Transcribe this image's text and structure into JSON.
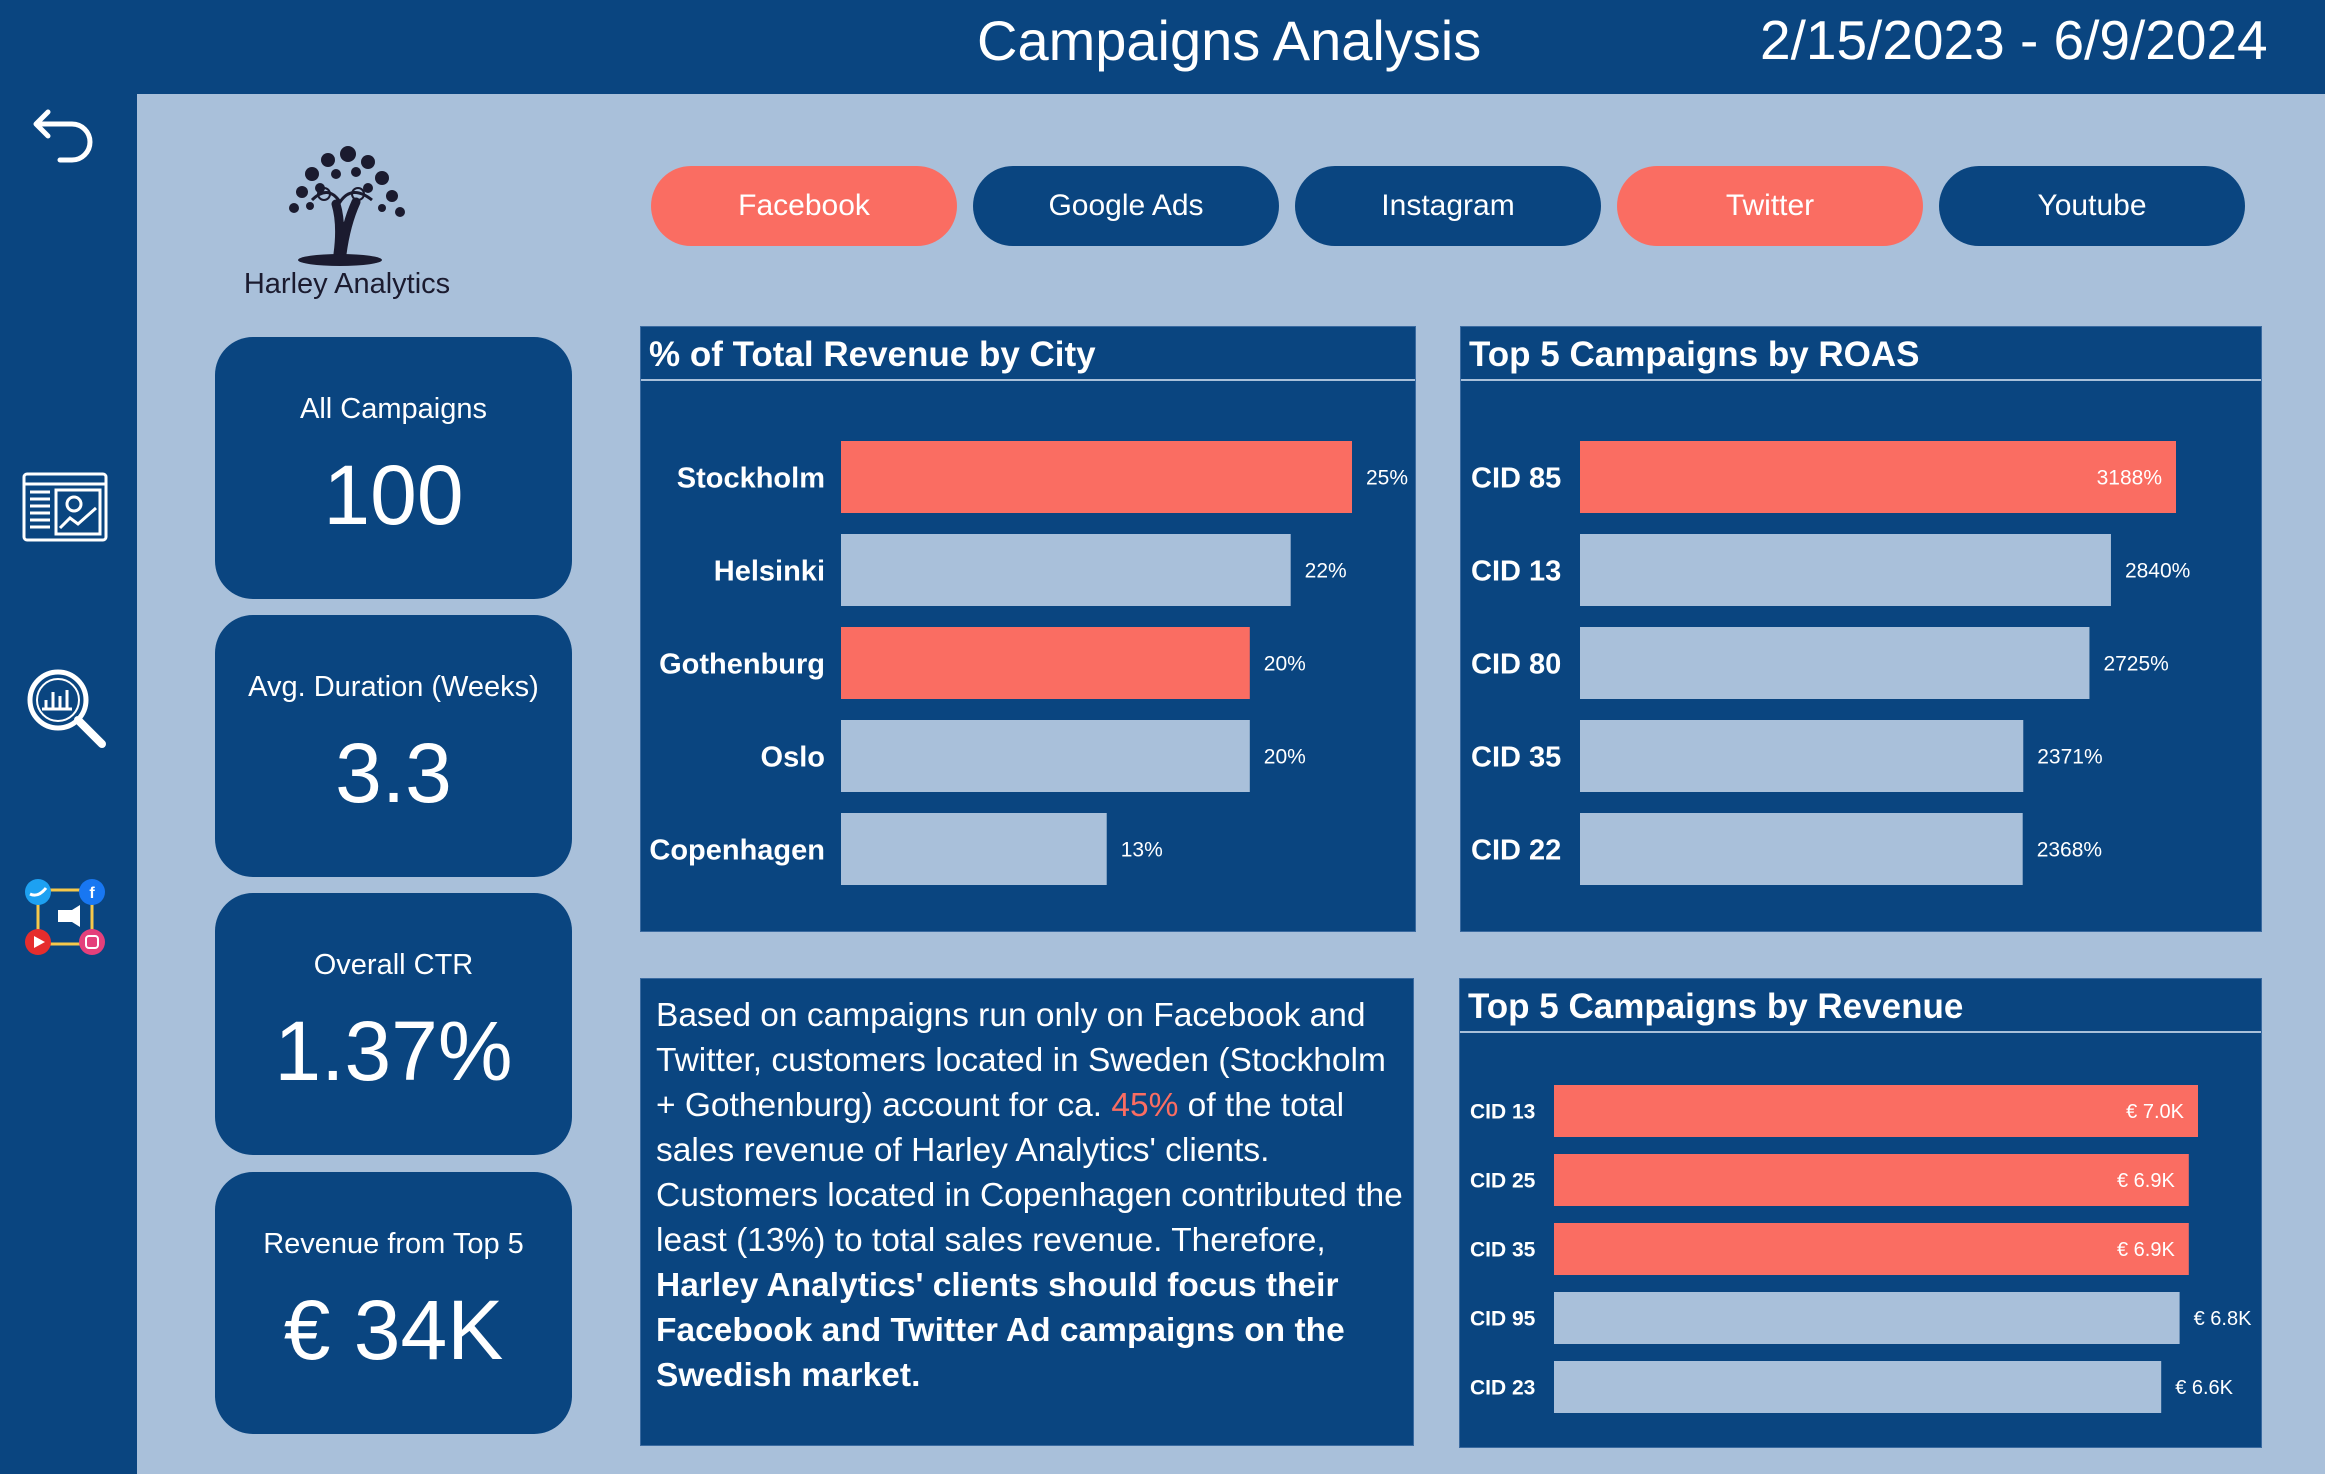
{
  "header": {
    "title": "Campaigns Analysis",
    "date_range": "2/15/2023 - 6/9/2024"
  },
  "sidebar": {
    "items": [
      {
        "icon": "back-arrow-icon"
      },
      {
        "icon": "dashboard-report-icon"
      },
      {
        "icon": "analytics-search-icon"
      },
      {
        "icon": "social-media-icon"
      }
    ]
  },
  "logo": {
    "text": "Harley Analytics"
  },
  "channels": [
    {
      "label": "Facebook",
      "selected": true
    },
    {
      "label": "Google Ads",
      "selected": false
    },
    {
      "label": "Instagram",
      "selected": false
    },
    {
      "label": "Twitter",
      "selected": true
    },
    {
      "label": "Youtube",
      "selected": false
    }
  ],
  "kpis": [
    {
      "label": "All Campaigns",
      "value": "100"
    },
    {
      "label": "Avg. Duration (Weeks)",
      "value": "3.3"
    },
    {
      "label": "Overall CTR",
      "value": "1.37%"
    },
    {
      "label": "Revenue from Top 5",
      "value": "€ 34K"
    }
  ],
  "colors": {
    "navy": "#0a4580",
    "background": "#a9c0da",
    "highlight": "#fa6d62",
    "bar_default": "#a9c0da"
  },
  "insight": {
    "p1": "Based on campaigns run only on Facebook and Twitter, customers located in Sweden (Stockholm + Gothenburg) account for ca. ",
    "highlight": "45%",
    "p2": " of the total sales revenue of Harley Analytics' clients. Customers located in Copenhagen contributed the least (13%) to total sales revenue. Therefore, ",
    "bold": "Harley Analytics' clients should focus their Facebook and Twitter Ad campaigns on the Swedish market."
  },
  "chart_data": [
    {
      "type": "bar",
      "orientation": "horizontal",
      "title": "% of Total Revenue by City",
      "categories": [
        "Stockholm",
        "Helsinki",
        "Gothenburg",
        "Oslo",
        "Copenhagen"
      ],
      "values": [
        25,
        22,
        20,
        20,
        13
      ],
      "labels": [
        "25%",
        "22%",
        "20%",
        "20%",
        "13%"
      ],
      "highlighted": [
        true,
        false,
        true,
        false,
        false
      ],
      "xlim": [
        0,
        25
      ]
    },
    {
      "type": "bar",
      "orientation": "horizontal",
      "title": "Top 5 Campaigns by ROAS",
      "categories": [
        "CID 85",
        "CID 13",
        "CID 80",
        "CID 35",
        "CID 22"
      ],
      "values": [
        3188,
        2840,
        2725,
        2371,
        2368
      ],
      "labels": [
        "3188%",
        "2840%",
        "2725%",
        "2371%",
        "2368%"
      ],
      "highlighted": [
        true,
        false,
        false,
        false,
        false
      ],
      "xlim": [
        0,
        3188
      ]
    },
    {
      "type": "bar",
      "orientation": "horizontal",
      "title": "Top 5 Campaigns by Revenue",
      "categories": [
        "CID 13",
        "CID 25",
        "CID 35",
        "CID 95",
        "CID 23"
      ],
      "values": [
        7.0,
        6.9,
        6.9,
        6.8,
        6.6
      ],
      "labels": [
        "€ 7.0K",
        "€ 6.9K",
        "€ 6.9K",
        "€ 6.8K",
        "€ 6.6K"
      ],
      "highlighted": [
        true,
        true,
        true,
        false,
        false
      ],
      "xlim": [
        0,
        7.0
      ]
    }
  ]
}
